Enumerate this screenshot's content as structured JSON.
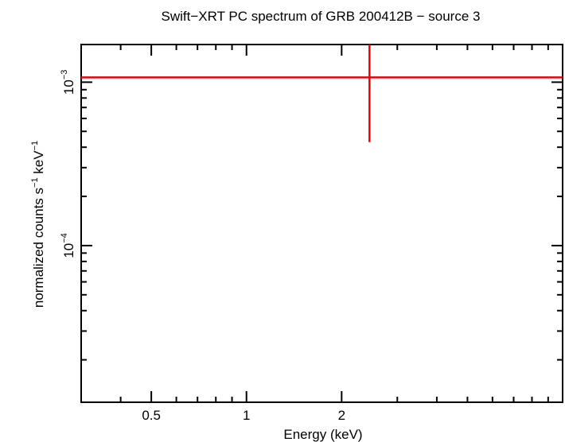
{
  "chart_data": {
    "type": "scatter",
    "title": "Swift−XRT PC spectrum of GRB 200412B − source 3",
    "xlabel": "Energy (keV)",
    "ylabel_parts": [
      "normalized counts s",
      "−1",
      " keV",
      "−1"
    ],
    "x_scale": "log",
    "y_scale": "log",
    "xlim": [
      0.3,
      10
    ],
    "ylim": [
      1.1e-05,
      0.0017
    ],
    "x_ticks": [
      {
        "value": 0.5,
        "label": "0.5"
      },
      {
        "value": 1,
        "label": "1"
      },
      {
        "value": 2,
        "label": "2"
      }
    ],
    "y_ticks": [
      {
        "value": 0.0001,
        "base": "10",
        "exp": "−4"
      },
      {
        "value": 0.001,
        "base": "10",
        "exp": "−3"
      }
    ],
    "series": [
      {
        "color": "#e8000b",
        "points": [
          {
            "x": 2.45,
            "x_low": 0.3,
            "x_high": 10,
            "y": 0.00107,
            "y_low": 0.00043,
            "y_high": 0.0017
          }
        ]
      }
    ]
  }
}
